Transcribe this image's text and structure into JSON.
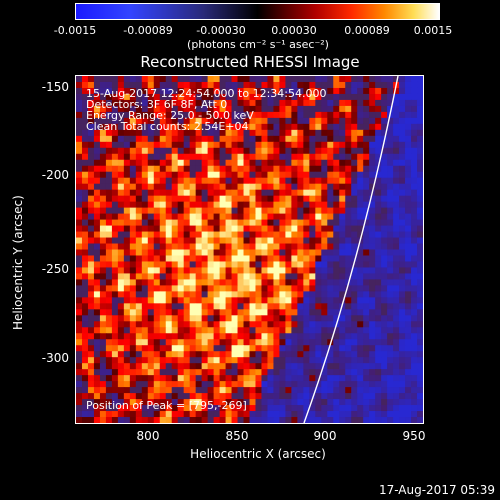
{
  "colorbar": {
    "ticks": [
      "-0.0015",
      "-0.00089",
      "-0.00030",
      "0.00030",
      "0.00089",
      "0.0015"
    ],
    "units_label": "(photons cm⁻² s⁻¹ asec⁻²)",
    "colors": [
      "#1a1aff",
      "#2a2a7a",
      "#000000",
      "#b00000",
      "#ff8800",
      "#ffffff"
    ]
  },
  "image": {
    "title": "Reconstructed RHESSI Image",
    "info_lines": [
      "15-Aug-2017 12:24:54.000 to 12:34:54.000",
      "Detectors: 3F 6F 8F, Att 0",
      "Energy Range: 25.0 - 50.0 keV",
      "Clean     Total counts: 2.54E+04"
    ],
    "peak_label": "Position of Peak = [795,-269]",
    "peak": [
      795,
      -269
    ]
  },
  "axes": {
    "xlabel": "Heliocentric X (arcsec)",
    "ylabel": "Heliocentric Y (arcsec)",
    "xticks": [
      "800",
      "850",
      "900",
      "950"
    ],
    "yticks": [
      "-150",
      "-200",
      "-250",
      "-300"
    ],
    "xrange": [
      760,
      950
    ],
    "yrange": [
      -340,
      -145
    ]
  },
  "footer": {
    "timestamp": "17-Aug-2017 05:39"
  }
}
